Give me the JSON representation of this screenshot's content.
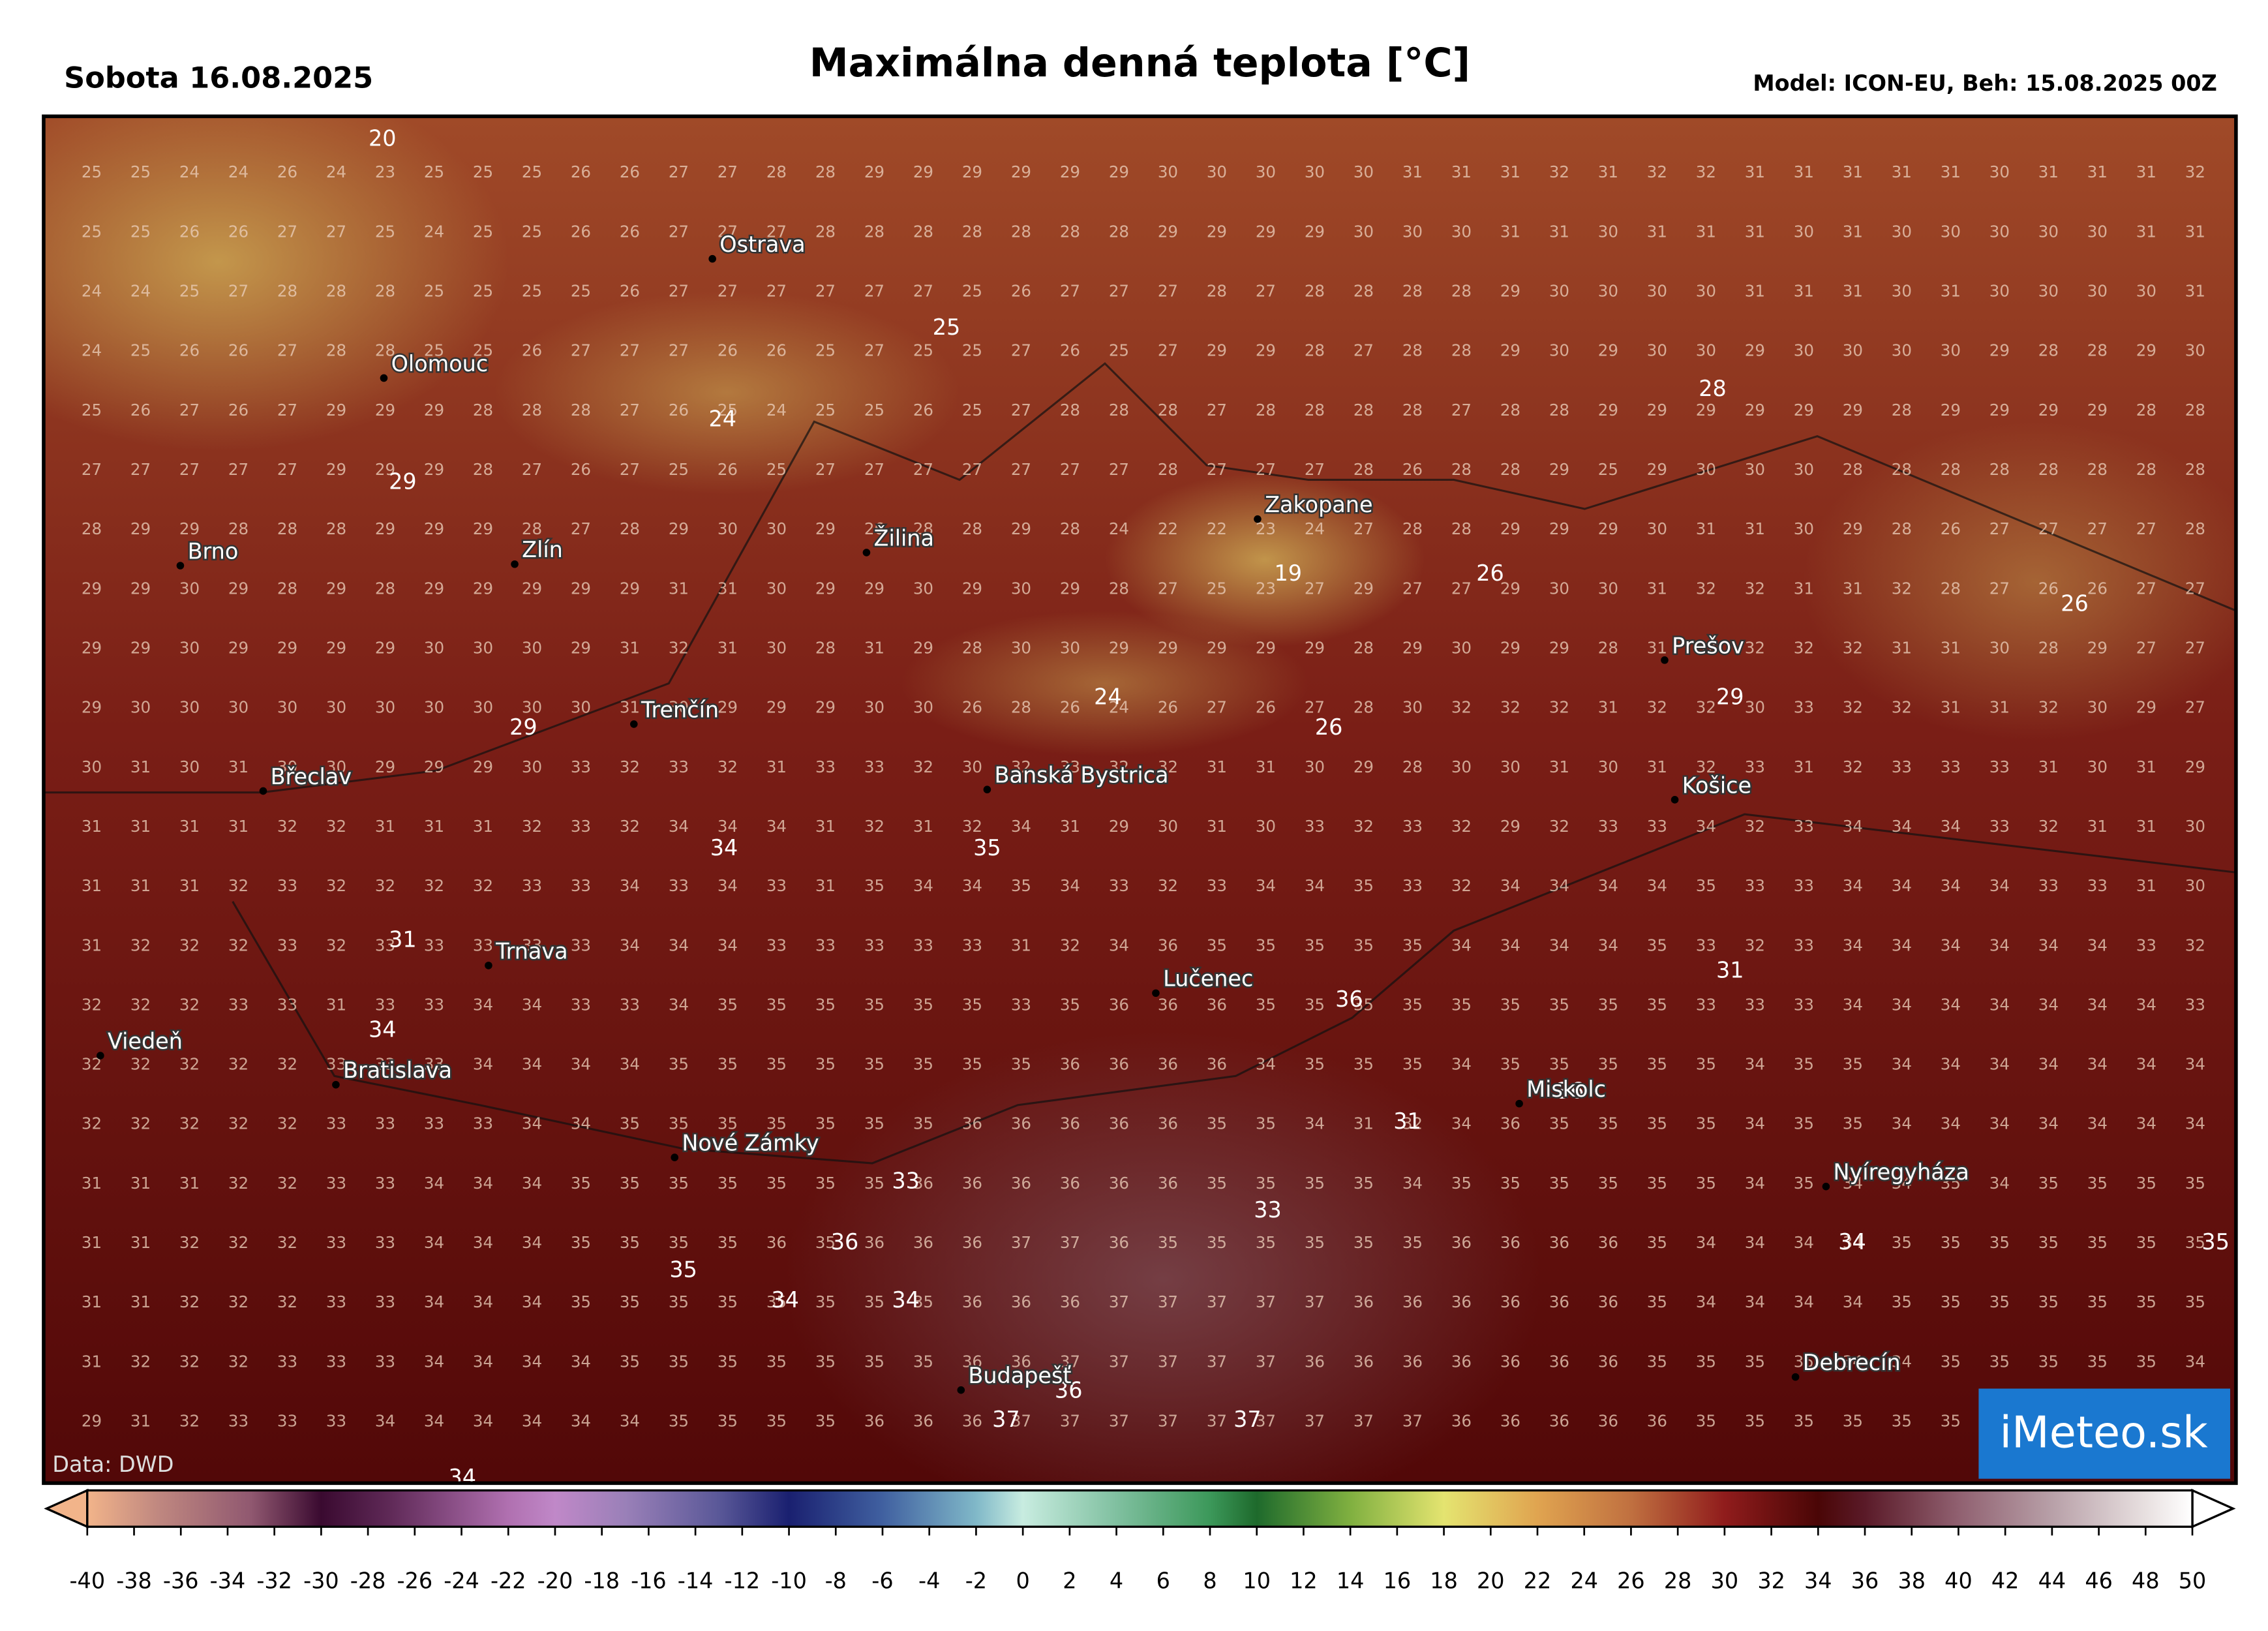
{
  "header": {
    "date": "Sobota 16.08.2025",
    "title": "Maximálna denná teplota [°C]",
    "model": "Model: ICON-EU, Beh: 15.08.2025 00Z"
  },
  "map": {
    "grid": [
      [
        25,
        25,
        24,
        24,
        26,
        24,
        23,
        25,
        25,
        25,
        26,
        26,
        27,
        27,
        28,
        28,
        29,
        29,
        29,
        29,
        29,
        29,
        30,
        30,
        30,
        30,
        30,
        31,
        31,
        31,
        32,
        31,
        32,
        32,
        31,
        31,
        31,
        31,
        31,
        30,
        31,
        31,
        31,
        32
      ],
      [
        25,
        25,
        26,
        26,
        27,
        27,
        25,
        24,
        25,
        25,
        26,
        26,
        27,
        27,
        27,
        28,
        28,
        28,
        28,
        28,
        28,
        28,
        29,
        29,
        29,
        29,
        30,
        30,
        30,
        31,
        31,
        30,
        31,
        31,
        31,
        30,
        31,
        30,
        30,
        30,
        30,
        30,
        31,
        31
      ],
      [
        24,
        24,
        25,
        27,
        28,
        28,
        28,
        25,
        25,
        25,
        25,
        26,
        27,
        27,
        27,
        27,
        27,
        27,
        25,
        26,
        27,
        27,
        27,
        28,
        27,
        28,
        28,
        28,
        28,
        29,
        30,
        30,
        30,
        30,
        31,
        31,
        31,
        30,
        31,
        30,
        30,
        30,
        30,
        31
      ],
      [
        24,
        25,
        26,
        26,
        27,
        28,
        28,
        25,
        25,
        26,
        27,
        27,
        27,
        26,
        26,
        25,
        27,
        25,
        25,
        27,
        26,
        25,
        27,
        29,
        29,
        28,
        27,
        28,
        28,
        29,
        30,
        29,
        30,
        30,
        29,
        30,
        30,
        30,
        30,
        29,
        28,
        28,
        29,
        30
      ],
      [
        25,
        26,
        27,
        26,
        27,
        29,
        29,
        29,
        28,
        28,
        28,
        27,
        26,
        25,
        24,
        25,
        25,
        26,
        25,
        27,
        28,
        28,
        28,
        27,
        28,
        28,
        28,
        28,
        27,
        28,
        28,
        29,
        29,
        29,
        29,
        29,
        29,
        28,
        29,
        29,
        29,
        29,
        28,
        28
      ],
      [
        27,
        27,
        27,
        27,
        27,
        29,
        29,
        29,
        28,
        27,
        26,
        27,
        25,
        26,
        25,
        27,
        27,
        27,
        27,
        27,
        27,
        27,
        28,
        27,
        27,
        27,
        28,
        26,
        28,
        28,
        29,
        25,
        29,
        30,
        30,
        30,
        28,
        28,
        28,
        28,
        28,
        28,
        28,
        28
      ],
      [
        28,
        29,
        29,
        28,
        28,
        28,
        29,
        29,
        29,
        28,
        27,
        28,
        29,
        30,
        30,
        29,
        26,
        28,
        28,
        29,
        28,
        24,
        22,
        22,
        23,
        24,
        27,
        28,
        28,
        29,
        29,
        29,
        30,
        31,
        31,
        30,
        29,
        28,
        26,
        27,
        27,
        27,
        27,
        28
      ],
      [
        29,
        29,
        30,
        29,
        28,
        29,
        28,
        29,
        29,
        29,
        29,
        29,
        31,
        31,
        30,
        29,
        29,
        30,
        29,
        30,
        29,
        28,
        27,
        25,
        23,
        27,
        29,
        27,
        27,
        29,
        30,
        30,
        31,
        32,
        32,
        31,
        31,
        32,
        28,
        27,
        26,
        26,
        27,
        27
      ],
      [
        29,
        29,
        30,
        29,
        29,
        29,
        29,
        30,
        30,
        30,
        29,
        31,
        32,
        31,
        30,
        28,
        31,
        29,
        28,
        30,
        30,
        29,
        29,
        29,
        29,
        29,
        28,
        29,
        30,
        29,
        29,
        28,
        31,
        32,
        32,
        32,
        32,
        31,
        31,
        30,
        28,
        29,
        27,
        27
      ],
      [
        29,
        30,
        30,
        30,
        30,
        30,
        30,
        30,
        30,
        30,
        30,
        31,
        30,
        29,
        29,
        29,
        30,
        30,
        26,
        28,
        26,
        24,
        26,
        27,
        26,
        27,
        28,
        30,
        32,
        32,
        32,
        31,
        32,
        32,
        30,
        33,
        32,
        32,
        31,
        31,
        32,
        30,
        29,
        27
      ],
      [
        30,
        31,
        30,
        31,
        30,
        30,
        29,
        29,
        29,
        30,
        33,
        32,
        33,
        32,
        31,
        33,
        33,
        32,
        30,
        32,
        33,
        32,
        32,
        31,
        31,
        30,
        29,
        28,
        30,
        30,
        31,
        30,
        31,
        32,
        33,
        31,
        32,
        33,
        33,
        33,
        31,
        30,
        31,
        29
      ],
      [
        31,
        31,
        31,
        31,
        32,
        32,
        31,
        31,
        31,
        32,
        33,
        32,
        34,
        34,
        34,
        31,
        32,
        31,
        32,
        34,
        31,
        29,
        30,
        31,
        30,
        33,
        32,
        33,
        32,
        29,
        32,
        33,
        33,
        34,
        32,
        33,
        34,
        34,
        34,
        33,
        32,
        31,
        31,
        30
      ],
      [
        31,
        31,
        31,
        32,
        33,
        32,
        32,
        32,
        32,
        33,
        33,
        34,
        33,
        34,
        33,
        31,
        35,
        34,
        34,
        35,
        34,
        33,
        32,
        33,
        34,
        34,
        35,
        33,
        32,
        34,
        34,
        34,
        34,
        35,
        33,
        33,
        34,
        34,
        34,
        34,
        33,
        33,
        31,
        30
      ],
      [
        31,
        32,
        32,
        32,
        33,
        32,
        33,
        33,
        33,
        33,
        33,
        34,
        34,
        34,
        33,
        33,
        33,
        33,
        33,
        31,
        32,
        34,
        36,
        35,
        35,
        35,
        35,
        35,
        34,
        34,
        34,
        34,
        35,
        33,
        32,
        33,
        34,
        34,
        34,
        34,
        34,
        34,
        33,
        32
      ],
      [
        32,
        32,
        32,
        33,
        33,
        31,
        33,
        33,
        34,
        34,
        33,
        33,
        34,
        35,
        35,
        35,
        35,
        35,
        35,
        33,
        35,
        36,
        36,
        36,
        35,
        35,
        35,
        35,
        35,
        35,
        35,
        35,
        35,
        33,
        33,
        33,
        34,
        34,
        34,
        34,
        34,
        34,
        34,
        33
      ],
      [
        32,
        32,
        32,
        32,
        32,
        33,
        33,
        33,
        34,
        34,
        34,
        34,
        35,
        35,
        35,
        35,
        35,
        35,
        35,
        35,
        36,
        36,
        36,
        36,
        34,
        35,
        35,
        35,
        34,
        35,
        35,
        35,
        35,
        35,
        34,
        35,
        35,
        34,
        34,
        34,
        34,
        34,
        34,
        34
      ],
      [
        32,
        32,
        32,
        32,
        32,
        33,
        33,
        33,
        33,
        34,
        34,
        35,
        35,
        35,
        35,
        35,
        35,
        35,
        36,
        36,
        36,
        36,
        36,
        35,
        35,
        34,
        31,
        32,
        34,
        36,
        35,
        35,
        35,
        35,
        34,
        35,
        35,
        34,
        34,
        34,
        34,
        34,
        34,
        34
      ],
      [
        31,
        31,
        31,
        32,
        32,
        33,
        33,
        34,
        34,
        34,
        35,
        35,
        35,
        35,
        35,
        35,
        35,
        36,
        36,
        36,
        36,
        36,
        36,
        35,
        35,
        35,
        35,
        34,
        35,
        35,
        35,
        35,
        35,
        35,
        34,
        35,
        34,
        34,
        35,
        34,
        35,
        35,
        35,
        35
      ],
      [
        31,
        31,
        32,
        32,
        32,
        33,
        33,
        34,
        34,
        34,
        35,
        35,
        35,
        35,
        36,
        35,
        36,
        36,
        36,
        37,
        37,
        36,
        35,
        35,
        35,
        35,
        35,
        35,
        36,
        36,
        36,
        36,
        35,
        34,
        34,
        34,
        34,
        35,
        35,
        35,
        35,
        35,
        35,
        35
      ],
      [
        31,
        31,
        32,
        32,
        32,
        33,
        33,
        34,
        34,
        34,
        35,
        35,
        35,
        35,
        35,
        35,
        35,
        35,
        36,
        36,
        36,
        37,
        37,
        37,
        37,
        37,
        36,
        36,
        36,
        36,
        36,
        36,
        35,
        34,
        34,
        34,
        34,
        35,
        35,
        35,
        35,
        35,
        35,
        35
      ],
      [
        31,
        32,
        32,
        32,
        33,
        33,
        33,
        34,
        34,
        34,
        34,
        35,
        35,
        35,
        35,
        35,
        35,
        35,
        36,
        36,
        37,
        37,
        37,
        37,
        37,
        36,
        36,
        36,
        36,
        36,
        36,
        36,
        35,
        35,
        35,
        35,
        34,
        34,
        35,
        35,
        35,
        35,
        35,
        34
      ],
      [
        29,
        31,
        32,
        33,
        33,
        33,
        34,
        34,
        34,
        34,
        34,
        34,
        35,
        35,
        35,
        35,
        36,
        36,
        36,
        37,
        37,
        37,
        37,
        37,
        37,
        37,
        37,
        37,
        36,
        36,
        36,
        36,
        36,
        35,
        35,
        35,
        35,
        35,
        35
      ]
    ],
    "extremes": [
      20,
      25,
      24,
      29,
      28,
      19,
      26,
      26,
      24,
      26,
      29,
      29,
      34,
      35,
      31,
      31,
      36,
      34,
      36,
      31,
      33,
      33,
      36,
      35,
      34,
      34,
      34,
      35,
      36,
      37,
      37,
      34
    ],
    "cities": [
      "Ostrava",
      "Olomouc",
      "Brno",
      "Zlín",
      "Žilina",
      "Zakopane",
      "Prešov",
      "Trenčín",
      "Břeclav",
      "Banská Bystrica",
      "Košice",
      "Trnava",
      "Lučenec",
      "Viedeň",
      "Bratislava",
      "Miskolc",
      "Nové Zámky",
      "Nyíregyháza",
      "Budapešť",
      "Debrecín"
    ],
    "source": "Data: DWD",
    "logo": "iMeteo.sk"
  },
  "colorbar": {
    "ticks": [
      -40,
      -38,
      -36,
      -34,
      -32,
      -30,
      -28,
      -26,
      -24,
      -22,
      -20,
      -18,
      -16,
      -14,
      -12,
      -10,
      -8,
      -6,
      -4,
      -2,
      0,
      2,
      4,
      6,
      8,
      10,
      12,
      14,
      16,
      18,
      20,
      22,
      24,
      26,
      28,
      30,
      32,
      34,
      36,
      38,
      40,
      42,
      44,
      46,
      48,
      50
    ],
    "colors": [
      {
        "value": -40,
        "color": "#f2b48a"
      },
      {
        "value": -37,
        "color": "#c08880"
      },
      {
        "value": -33,
        "color": "#905870"
      },
      {
        "value": -30,
        "color": "#3a0a30"
      },
      {
        "value": -27,
        "color": "#602a58"
      },
      {
        "value": -22,
        "color": "#b070b0"
      },
      {
        "value": -20,
        "color": "#c088c8"
      },
      {
        "value": -17,
        "color": "#9a80b8"
      },
      {
        "value": -13,
        "color": "#5a5898"
      },
      {
        "value": -10,
        "color": "#1a2070"
      },
      {
        "value": -6,
        "color": "#4060a0"
      },
      {
        "value": -2,
        "color": "#80b8c8"
      },
      {
        "value": 0,
        "color": "#c8ece0"
      },
      {
        "value": 4,
        "color": "#80c0a0"
      },
      {
        "value": 8,
        "color": "#3c985a"
      },
      {
        "value": 10,
        "color": "#1e6a2c"
      },
      {
        "value": 14,
        "color": "#80b040"
      },
      {
        "value": 18,
        "color": "#e4e470"
      },
      {
        "value": 22,
        "color": "#e0a450"
      },
      {
        "value": 26,
        "color": "#c07040"
      },
      {
        "value": 30,
        "color": "#901c1c"
      },
      {
        "value": 34,
        "color": "#4a0606"
      },
      {
        "value": 36,
        "color": "#5a1a28"
      },
      {
        "value": 40,
        "color": "#906070"
      },
      {
        "value": 44,
        "color": "#b8a0a8"
      },
      {
        "value": 48,
        "color": "#e8e0e0"
      },
      {
        "value": 50,
        "color": "#ffffff"
      }
    ]
  }
}
